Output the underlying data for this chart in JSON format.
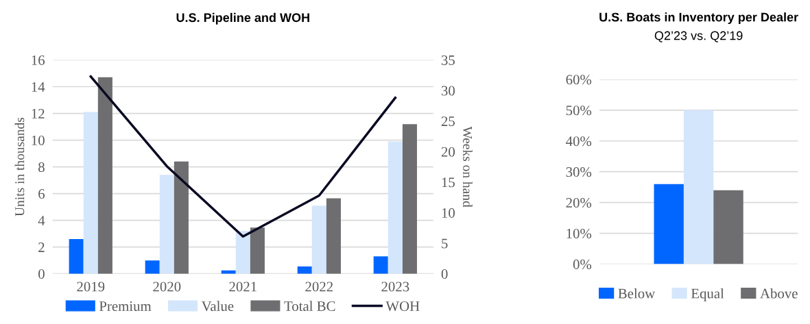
{
  "chart_data": [
    {
      "type": "bar",
      "title": "U.S. Pipeline and WOH",
      "ylabel": "Units in thousands",
      "y2label": "Weeks on hand",
      "categories": [
        "2019",
        "2020",
        "2021",
        "2022",
        "2023"
      ],
      "series": [
        {
          "name": "Premium",
          "color": "#0066ff",
          "values": [
            2.6,
            1.0,
            0.25,
            0.55,
            1.3
          ]
        },
        {
          "name": "Value",
          "color": "#d4e6fc",
          "values": [
            12.1,
            7.4,
            3.2,
            5.1,
            9.9
          ]
        },
        {
          "name": "Total BC",
          "color": "#6e6e70",
          "values": [
            14.7,
            8.4,
            3.45,
            5.65,
            11.2
          ]
        },
        {
          "name": "WOH",
          "type": "line",
          "axis": "y2",
          "color": "#0a0a23",
          "values": [
            32.3,
            17.6,
            6.1,
            12.8,
            28.8
          ]
        }
      ],
      "ylim": [
        0,
        16
      ],
      "yticks": [
        0,
        2,
        4,
        6,
        8,
        10,
        12,
        14,
        16
      ],
      "y2lim": [
        0,
        35
      ],
      "y2ticks": [
        0,
        5,
        10,
        15,
        20,
        25,
        30,
        35
      ],
      "grid": "y",
      "legend": "bottom",
      "marker": "none",
      "line_style": "solid"
    },
    {
      "type": "bar",
      "title": "U.S. Boats in Inventory per Dealer",
      "subtitle": "Q2’23 vs. Q2’19",
      "categories": [
        null
      ],
      "series": [
        {
          "name": "Below",
          "color": "#0066ff",
          "values": [
            26
          ]
        },
        {
          "name": "Equal",
          "color": "#d4e6fc",
          "values": [
            50
          ]
        },
        {
          "name": "Above",
          "color": "#6e6e70",
          "values": [
            24
          ]
        }
      ],
      "ylim": [
        0,
        60
      ],
      "yticks": [
        {
          "value": 0,
          "label": "0%"
        },
        {
          "value": 10,
          "label": "10%"
        },
        {
          "value": 20,
          "label": "20%"
        },
        {
          "value": 30,
          "label": "30%"
        },
        {
          "value": 40,
          "label": "40%"
        },
        {
          "value": 50,
          "label": "50%"
        },
        {
          "value": 60,
          "label": "60%"
        }
      ],
      "grid": "y",
      "legend": "bottom"
    }
  ]
}
